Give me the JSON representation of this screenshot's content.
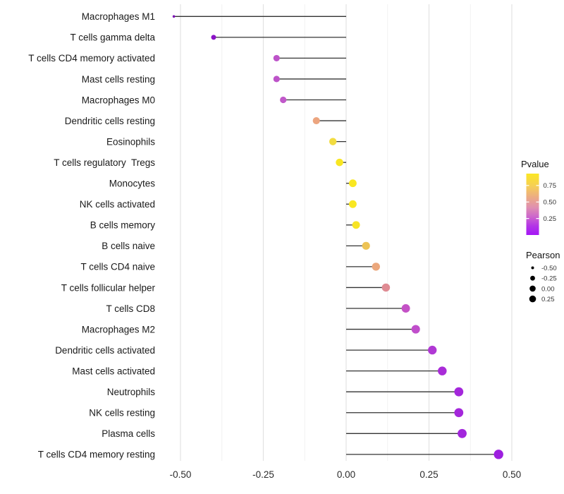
{
  "chart_data": {
    "type": "scatter",
    "subtype": "lollipop",
    "title": "",
    "xlabel": "",
    "ylabel": "",
    "x_ticks": [
      "-0.50",
      "-0.25",
      "0.00",
      "0.25",
      "0.50"
    ],
    "x_tick_values": [
      -0.5,
      -0.25,
      0.0,
      0.25,
      0.5
    ],
    "xlim": [
      -0.56,
      0.52
    ],
    "grid": "on",
    "stem_color": "#333333",
    "gridline_major_color": "#e3e3e3",
    "gridline_minor_color": "#f1f1f1",
    "rows": [
      {
        "label": "Macrophages M1",
        "pearson": -0.52,
        "dot_color": "#7c0fb5"
      },
      {
        "label": "T cells gamma delta",
        "pearson": -0.4,
        "dot_color": "#8b13c6"
      },
      {
        "label": "T cells CD4 memory activated",
        "pearson": -0.21,
        "dot_color": "#bd53c9"
      },
      {
        "label": "Mast cells resting",
        "pearson": -0.21,
        "dot_color": "#bd53c9"
      },
      {
        "label": "Macrophages M0",
        "pearson": -0.19,
        "dot_color": "#c159ca"
      },
      {
        "label": "Dendritic cells resting",
        "pearson": -0.09,
        "dot_color": "#eca57f"
      },
      {
        "label": "Eosinophils",
        "pearson": -0.04,
        "dot_color": "#f2dc40"
      },
      {
        "label": "T cells regulatory  Tregs",
        "pearson": -0.02,
        "dot_color": "#f8e622"
      },
      {
        "label": "Monocytes",
        "pearson": 0.02,
        "dot_color": "#f9e721"
      },
      {
        "label": "NK cells activated",
        "pearson": 0.02,
        "dot_color": "#f9e721"
      },
      {
        "label": "B cells memory",
        "pearson": 0.03,
        "dot_color": "#f7e425"
      },
      {
        "label": "B cells naive",
        "pearson": 0.06,
        "dot_color": "#edc355"
      },
      {
        "label": "T cells CD4 naive",
        "pearson": 0.09,
        "dot_color": "#eba77c"
      },
      {
        "label": "T cells follicular helper",
        "pearson": 0.12,
        "dot_color": "#df8b93"
      },
      {
        "label": "T cells CD8",
        "pearson": 0.18,
        "dot_color": "#c451c6"
      },
      {
        "label": "Macrophages M2",
        "pearson": 0.21,
        "dot_color": "#c04ecb"
      },
      {
        "label": "Dendritic cells activated",
        "pearson": 0.26,
        "dot_color": "#b038d4"
      },
      {
        "label": "Mast cells activated",
        "pearson": 0.29,
        "dot_color": "#a92cd8"
      },
      {
        "label": "Neutrophils",
        "pearson": 0.34,
        "dot_color": "#a427db"
      },
      {
        "label": "NK cells resting",
        "pearson": 0.34,
        "dot_color": "#a427db"
      },
      {
        "label": "Plasma cells",
        "pearson": 0.35,
        "dot_color": "#a226dc"
      },
      {
        "label": "T cells CD4 memory resting",
        "pearson": 0.46,
        "dot_color": "#9d1fdf"
      }
    ],
    "legend": {
      "position": "right",
      "color_legend": {
        "title": "Pvalue",
        "tick_labels": [
          "0.75",
          "0.50",
          "0.25"
        ],
        "tick_values": [
          0.75,
          0.5,
          0.25
        ],
        "domain": [
          0.0,
          0.93
        ],
        "gradient_stops": [
          {
            "offset": 0.0,
            "color": "#fbe723"
          },
          {
            "offset": 0.2,
            "color": "#f6cf56"
          },
          {
            "offset": 0.4,
            "color": "#eba888"
          },
          {
            "offset": 0.55,
            "color": "#e090b0"
          },
          {
            "offset": 0.7,
            "color": "#cd66cc"
          },
          {
            "offset": 0.85,
            "color": "#b335e6"
          },
          {
            "offset": 1.0,
            "color": "#a416f6"
          }
        ]
      },
      "size_legend": {
        "title": "Pearson",
        "tick_labels": [
          "-0.50",
          "-0.25",
          "0.00",
          "0.25"
        ],
        "tick_values": [
          -0.5,
          -0.25,
          0.0,
          0.25
        ],
        "dot_color": "#000000"
      }
    }
  }
}
